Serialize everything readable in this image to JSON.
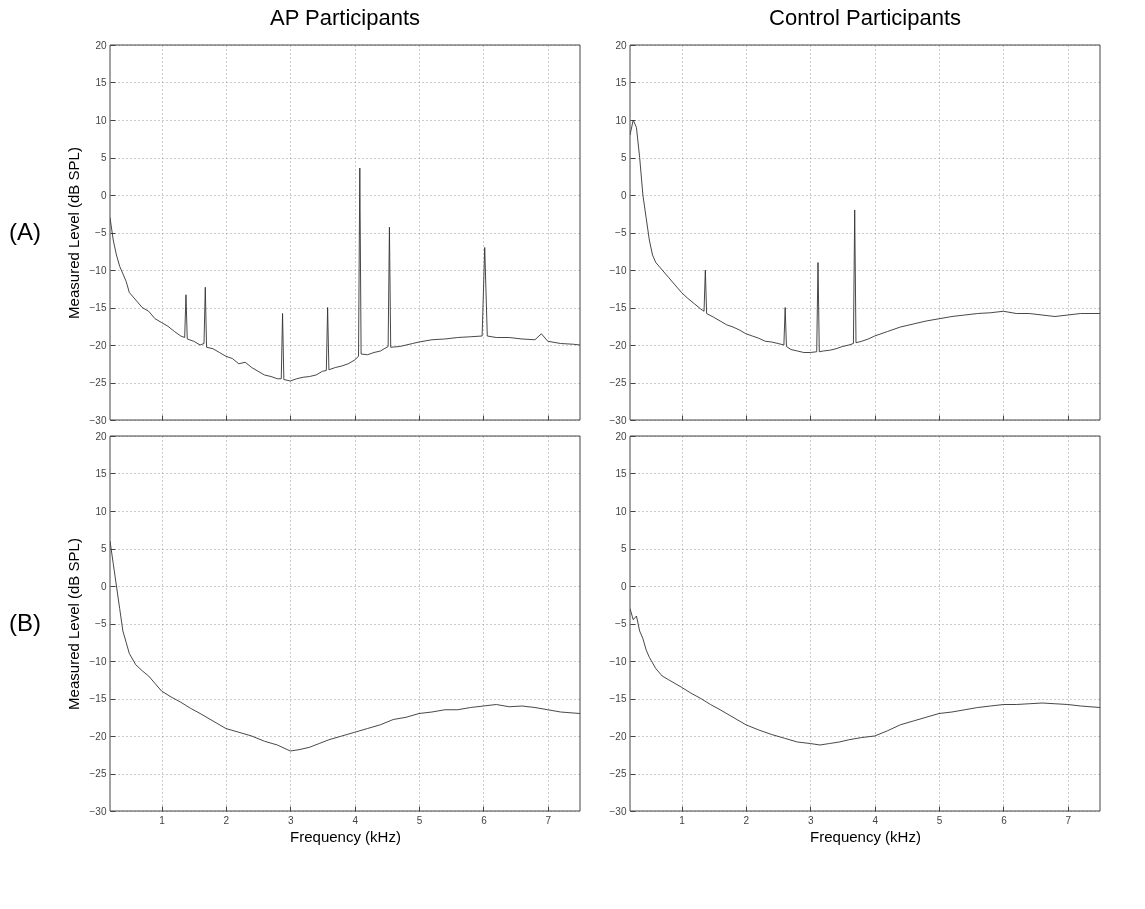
{
  "chart_data": [
    {
      "type": "line",
      "title": "AP Participants",
      "ylabel": "Measured Level (dB SPL)",
      "annotations": [
        "(A)"
      ],
      "xlim": [
        0.2,
        7.5
      ],
      "ylim": [
        -30,
        20
      ],
      "xticks": [
        1,
        2,
        3,
        4,
        5,
        6,
        7
      ],
      "yticks": [
        -30,
        -25,
        -20,
        -15,
        -10,
        -5,
        0,
        5,
        10,
        15,
        20
      ],
      "grid": true,
      "tick_labels": "y",
      "line_style": "solid",
      "series": [
        {
          "color": "#333333",
          "x": [
            0.2,
            0.25,
            0.3,
            0.35,
            0.4,
            0.45,
            0.5,
            0.6,
            0.7,
            0.8,
            0.9,
            1.0,
            1.1,
            1.2,
            1.3,
            1.36,
            1.38,
            1.4,
            1.5,
            1.6,
            1.66,
            1.68,
            1.7,
            1.8,
            1.9,
            2.0,
            2.1,
            2.2,
            2.3,
            2.4,
            2.5,
            2.6,
            2.7,
            2.8,
            2.86,
            2.88,
            2.9,
            3.0,
            3.1,
            3.2,
            3.3,
            3.4,
            3.5,
            3.56,
            3.58,
            3.6,
            3.7,
            3.8,
            3.9,
            4.0,
            4.06,
            4.08,
            4.1,
            4.2,
            4.3,
            4.4,
            4.52,
            4.54,
            4.56,
            4.7,
            4.8,
            4.9,
            5.0,
            5.2,
            5.4,
            5.6,
            5.8,
            5.98,
            6.02,
            6.06,
            6.2,
            6.4,
            6.6,
            6.8,
            6.9,
            7.0,
            7.2,
            7.4,
            7.5
          ],
          "values": [
            -3,
            -6,
            -8,
            -9.5,
            -10.5,
            -11.5,
            -13,
            -14,
            -15,
            -15.5,
            -16.5,
            -17,
            -17.5,
            -18.2,
            -18.8,
            -19,
            -13.3,
            -19.2,
            -19.5,
            -20,
            -19.8,
            -12.3,
            -20.3,
            -20.5,
            -21,
            -21.5,
            -21.8,
            -22.5,
            -22.3,
            -23,
            -23.5,
            -24,
            -24.2,
            -24.5,
            -24.5,
            -15.8,
            -24.6,
            -24.8,
            -24.5,
            -24.3,
            -24.2,
            -24,
            -23.5,
            -23.4,
            -15,
            -23.3,
            -23,
            -22.8,
            -22.5,
            -22,
            -21.5,
            3.6,
            -21.2,
            -21.3,
            -21,
            -20.8,
            -20.2,
            -4.3,
            -20.3,
            -20.2,
            -20,
            -19.8,
            -19.6,
            -19.3,
            -19.2,
            -19,
            -18.9,
            -18.8,
            -7,
            -18.8,
            -19,
            -19,
            -19.2,
            -19.3,
            -18.5,
            -19.5,
            -19.8,
            -19.9,
            -20
          ]
        }
      ]
    },
    {
      "type": "line",
      "title": "Control Participants",
      "xlim": [
        0.2,
        7.5
      ],
      "ylim": [
        -30,
        20
      ],
      "xticks": [
        1,
        2,
        3,
        4,
        5,
        6,
        7
      ],
      "yticks": [
        -30,
        -25,
        -20,
        -15,
        -10,
        -5,
        0,
        5,
        10,
        15,
        20
      ],
      "grid": true,
      "tick_labels": "y",
      "line_style": "solid",
      "series": [
        {
          "color": "#333333",
          "x": [
            0.2,
            0.25,
            0.3,
            0.35,
            0.4,
            0.45,
            0.5,
            0.55,
            0.6,
            0.7,
            0.8,
            0.9,
            1.0,
            1.1,
            1.2,
            1.3,
            1.35,
            1.37,
            1.39,
            1.5,
            1.6,
            1.7,
            1.8,
            1.9,
            2.0,
            2.1,
            2.2,
            2.3,
            2.4,
            2.5,
            2.59,
            2.61,
            2.63,
            2.7,
            2.8,
            2.9,
            3.0,
            3.1,
            3.12,
            3.14,
            3.2,
            3.3,
            3.4,
            3.5,
            3.6,
            3.67,
            3.69,
            3.71,
            3.8,
            3.9,
            4.0,
            4.2,
            4.4,
            4.6,
            4.8,
            5.0,
            5.2,
            5.4,
            5.6,
            5.8,
            6.0,
            6.2,
            6.4,
            6.6,
            6.8,
            7.0,
            7.2,
            7.5
          ],
          "values": [
            8,
            10,
            9,
            5,
            0,
            -3,
            -6,
            -8,
            -9,
            -10,
            -11,
            -12,
            -13,
            -13.8,
            -14.5,
            -15.2,
            -15.5,
            -10,
            -15.8,
            -16.3,
            -16.8,
            -17.3,
            -17.6,
            -18,
            -18.5,
            -18.8,
            -19.1,
            -19.5,
            -19.6,
            -19.8,
            -20,
            -15,
            -20.2,
            -20.6,
            -20.8,
            -21,
            -21,
            -20.9,
            -9,
            -20.9,
            -20.8,
            -20.7,
            -20.5,
            -20.2,
            -20,
            -19.8,
            -2,
            -19.7,
            -19.5,
            -19.2,
            -18.8,
            -18.2,
            -17.6,
            -17.2,
            -16.8,
            -16.5,
            -16.2,
            -16,
            -15.8,
            -15.7,
            -15.5,
            -15.8,
            -15.8,
            -16,
            -16.2,
            -16,
            -15.8,
            -15.8
          ]
        }
      ]
    },
    {
      "type": "line",
      "ylabel": "Measured Level (dB SPL)",
      "xlabel": "Frequency (kHz)",
      "annotations": [
        "(B)"
      ],
      "xlim": [
        0.2,
        7.5
      ],
      "ylim": [
        -30,
        20
      ],
      "xticks": [
        1,
        2,
        3,
        4,
        5,
        6,
        7
      ],
      "yticks": [
        -30,
        -25,
        -20,
        -15,
        -10,
        -5,
        0,
        5,
        10,
        15,
        20
      ],
      "grid": true,
      "line_style": "solid",
      "series": [
        {
          "color": "#333333",
          "x": [
            0.2,
            0.25,
            0.3,
            0.35,
            0.4,
            0.45,
            0.5,
            0.6,
            0.7,
            0.8,
            0.9,
            1.0,
            1.15,
            1.3,
            1.45,
            1.6,
            1.8,
            2.0,
            2.2,
            2.4,
            2.6,
            2.8,
            3.0,
            3.15,
            3.3,
            3.45,
            3.6,
            3.8,
            4.0,
            4.2,
            4.4,
            4.6,
            4.8,
            5.0,
            5.2,
            5.4,
            5.6,
            5.8,
            6.0,
            6.2,
            6.4,
            6.6,
            6.8,
            7.0,
            7.2,
            7.5
          ],
          "values": [
            6,
            3,
            0,
            -3,
            -6,
            -7.5,
            -9,
            -10.5,
            -11.3,
            -12,
            -13,
            -14,
            -14.8,
            -15.5,
            -16.3,
            -17,
            -18,
            -19,
            -19.5,
            -20,
            -20.7,
            -21.2,
            -22,
            -21.8,
            -21.5,
            -21,
            -20.5,
            -20,
            -19.5,
            -19,
            -18.5,
            -17.8,
            -17.5,
            -17,
            -16.8,
            -16.5,
            -16.5,
            -16.2,
            -16,
            -15.8,
            -16.1,
            -16,
            -16.2,
            -16.5,
            -16.8,
            -17
          ]
        }
      ]
    },
    {
      "type": "line",
      "xlabel": "Frequency (kHz)",
      "xlim": [
        0.2,
        7.5
      ],
      "ylim": [
        -30,
        20
      ],
      "xticks": [
        1,
        2,
        3,
        4,
        5,
        6,
        7
      ],
      "yticks": [
        -30,
        -25,
        -20,
        -15,
        -10,
        -5,
        0,
        5,
        10,
        15,
        20
      ],
      "grid": true,
      "line_style": "solid",
      "series": [
        {
          "color": "#333333",
          "x": [
            0.2,
            0.25,
            0.3,
            0.35,
            0.4,
            0.45,
            0.5,
            0.6,
            0.7,
            0.8,
            0.9,
            1.0,
            1.15,
            1.3,
            1.45,
            1.6,
            1.8,
            2.0,
            2.2,
            2.4,
            2.6,
            2.8,
            3.0,
            3.15,
            3.3,
            3.45,
            3.6,
            3.8,
            4.0,
            4.2,
            4.4,
            4.6,
            4.8,
            5.0,
            5.2,
            5.4,
            5.6,
            5.8,
            6.0,
            6.2,
            6.4,
            6.6,
            6.8,
            7.0,
            7.2,
            7.5
          ],
          "values": [
            -3,
            -4.5,
            -4,
            -6,
            -7,
            -8.5,
            -9.5,
            -11,
            -12,
            -12.5,
            -13,
            -13.5,
            -14.3,
            -15,
            -15.8,
            -16.5,
            -17.5,
            -18.5,
            -19.2,
            -19.8,
            -20.3,
            -20.8,
            -21,
            -21.2,
            -21,
            -20.8,
            -20.5,
            -20.2,
            -20,
            -19.3,
            -18.5,
            -18,
            -17.5,
            -17,
            -16.8,
            -16.5,
            -16.2,
            -16,
            -15.8,
            -15.8,
            -15.7,
            -15.6,
            -15.7,
            -15.8,
            -16,
            -16.2
          ]
        }
      ]
    }
  ]
}
